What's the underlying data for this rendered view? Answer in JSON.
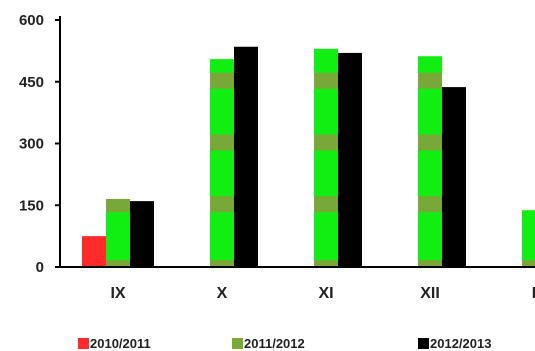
{
  "chart_data": {
    "type": "bar",
    "categories": [
      "IX",
      "X",
      "XI",
      "XII",
      "I"
    ],
    "series": [
      {
        "name": "2010/2011",
        "color": "#ff2a2a",
        "values": [
          75,
          null,
          null,
          null,
          null
        ]
      },
      {
        "name": "2011/2012",
        "color": "#11ee11",
        "band_color": "#78a838",
        "values": [
          165,
          505,
          530,
          512,
          138
        ]
      },
      {
        "name": "2012/2013",
        "color": "#000000",
        "values": [
          160,
          535,
          520,
          437,
          null
        ]
      }
    ],
    "ylim": [
      0,
      600
    ],
    "yticks": [
      0,
      150,
      300,
      450,
      600
    ],
    "xlabel": "",
    "ylabel": "",
    "title": "",
    "grid": false,
    "legend_position": "bottom"
  }
}
